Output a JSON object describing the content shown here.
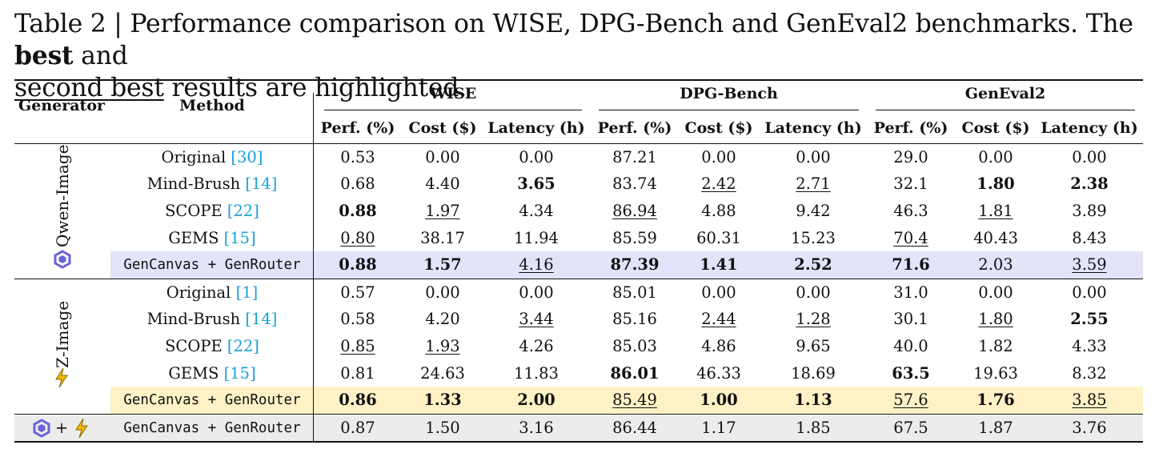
{
  "caption": {
    "prefix": "Table 2 | Performance comparison on WISE, DPG-Bench and GenEval2 benchmarks. The ",
    "best": "best",
    "and": " and",
    "second_best": "second best",
    "suffix": " results are highlighted."
  },
  "header": {
    "generator": "Generator",
    "method": "Method",
    "groups": [
      "WISE",
      "DPG-Bench",
      "GenEval2"
    ],
    "subcols": [
      "Perf. (%)",
      "Cost ($)",
      "Latency (h)",
      "Perf. (%)",
      "Cost ($)",
      "Latency (h)",
      "Perf. (%)",
      "Cost ($)",
      "Latency (h)"
    ]
  },
  "generators": {
    "qwen": "Qwen-Image",
    "zimage": "Z-Image",
    "combined_plus": "+"
  },
  "colors": {
    "cite": "#1aa0d8",
    "qwen_band": "#e3e3fa",
    "zimage_band": "#fdf1c5",
    "combined_band": "#ececec",
    "qwen_icon": "#6b63d9",
    "zimage_icon": "#f2b705"
  },
  "rows": [
    {
      "method": "Original ",
      "cite": "[30]",
      "cells": [
        {
          "v": "0.53"
        },
        {
          "v": "0.00"
        },
        {
          "v": "0.00"
        },
        {
          "v": "87.21"
        },
        {
          "v": "0.00"
        },
        {
          "v": "0.00"
        },
        {
          "v": "29.0"
        },
        {
          "v": "0.00"
        },
        {
          "v": "0.00"
        }
      ]
    },
    {
      "method": "Mind-Brush ",
      "cite": "[14]",
      "cells": [
        {
          "v": "0.68"
        },
        {
          "v": "4.40"
        },
        {
          "v": "3.65",
          "b": true
        },
        {
          "v": "83.74"
        },
        {
          "v": "2.42",
          "u": true
        },
        {
          "v": "2.71",
          "u": true
        },
        {
          "v": "32.1"
        },
        {
          "v": "1.80",
          "b": true
        },
        {
          "v": "2.38",
          "b": true
        }
      ]
    },
    {
      "method": "SCOPE ",
      "cite": "[22]",
      "cells": [
        {
          "v": "0.88",
          "b": true
        },
        {
          "v": "1.97",
          "u": true
        },
        {
          "v": "4.34"
        },
        {
          "v": "86.94",
          "u": true
        },
        {
          "v": "4.88"
        },
        {
          "v": "9.42"
        },
        {
          "v": "46.3"
        },
        {
          "v": "1.81",
          "u": true
        },
        {
          "v": "3.89"
        }
      ]
    },
    {
      "method": "GEMS ",
      "cite": "[15]",
      "cells": [
        {
          "v": "0.80",
          "u": true
        },
        {
          "v": "38.17"
        },
        {
          "v": "11.94"
        },
        {
          "v": "85.59"
        },
        {
          "v": "60.31"
        },
        {
          "v": "15.23"
        },
        {
          "v": "70.4",
          "u": true
        },
        {
          "v": "40.43"
        },
        {
          "v": "8.43"
        }
      ]
    },
    {
      "method": "GenCanvas + GenRouter",
      "cite": "",
      "mono": true,
      "cells": [
        {
          "v": "0.88",
          "b": true
        },
        {
          "v": "1.57",
          "b": true
        },
        {
          "v": "4.16",
          "u": true
        },
        {
          "v": "87.39",
          "b": true
        },
        {
          "v": "1.41",
          "b": true
        },
        {
          "v": "2.52",
          "b": true
        },
        {
          "v": "71.6",
          "b": true
        },
        {
          "v": "2.03"
        },
        {
          "v": "3.59",
          "u": true
        }
      ]
    },
    {
      "method": "Original ",
      "cite": "[1]",
      "cells": [
        {
          "v": "0.57"
        },
        {
          "v": "0.00"
        },
        {
          "v": "0.00"
        },
        {
          "v": "85.01"
        },
        {
          "v": "0.00"
        },
        {
          "v": "0.00"
        },
        {
          "v": "31.0"
        },
        {
          "v": "0.00"
        },
        {
          "v": "0.00"
        }
      ]
    },
    {
      "method": "Mind-Brush ",
      "cite": "[14]",
      "cells": [
        {
          "v": "0.58"
        },
        {
          "v": "4.20"
        },
        {
          "v": "3.44",
          "u": true
        },
        {
          "v": "85.16"
        },
        {
          "v": "2.44",
          "u": true
        },
        {
          "v": "1.28",
          "u": true
        },
        {
          "v": "30.1"
        },
        {
          "v": "1.80",
          "u": true
        },
        {
          "v": "2.55",
          "b": true
        }
      ]
    },
    {
      "method": "SCOPE ",
      "cite": "[22]",
      "cells": [
        {
          "v": "0.85",
          "u": true
        },
        {
          "v": "1.93",
          "u": true
        },
        {
          "v": "4.26"
        },
        {
          "v": "85.03"
        },
        {
          "v": "4.86"
        },
        {
          "v": "9.65"
        },
        {
          "v": "40.0"
        },
        {
          "v": "1.82"
        },
        {
          "v": "4.33"
        }
      ]
    },
    {
      "method": "GEMS ",
      "cite": "[15]",
      "cells": [
        {
          "v": "0.81"
        },
        {
          "v": "24.63"
        },
        {
          "v": "11.83"
        },
        {
          "v": "86.01",
          "b": true
        },
        {
          "v": "46.33"
        },
        {
          "v": "18.69"
        },
        {
          "v": "63.5",
          "b": true
        },
        {
          "v": "19.63"
        },
        {
          "v": "8.32"
        }
      ]
    },
    {
      "method": "GenCanvas + GenRouter",
      "cite": "",
      "mono": true,
      "cells": [
        {
          "v": "0.86",
          "b": true
        },
        {
          "v": "1.33",
          "b": true
        },
        {
          "v": "2.00",
          "b": true
        },
        {
          "v": "85.49",
          "u": true
        },
        {
          "v": "1.00",
          "b": true
        },
        {
          "v": "1.13",
          "b": true
        },
        {
          "v": "57.6",
          "u": true
        },
        {
          "v": "1.76",
          "b": true
        },
        {
          "v": "3.85",
          "u": true
        }
      ]
    },
    {
      "method": "GenCanvas + GenRouter",
      "cite": "",
      "mono": true,
      "cells": [
        {
          "v": "0.87"
        },
        {
          "v": "1.50"
        },
        {
          "v": "3.16"
        },
        {
          "v": "86.44"
        },
        {
          "v": "1.17"
        },
        {
          "v": "1.85"
        },
        {
          "v": "67.5"
        },
        {
          "v": "1.87"
        },
        {
          "v": "3.76"
        }
      ]
    }
  ]
}
